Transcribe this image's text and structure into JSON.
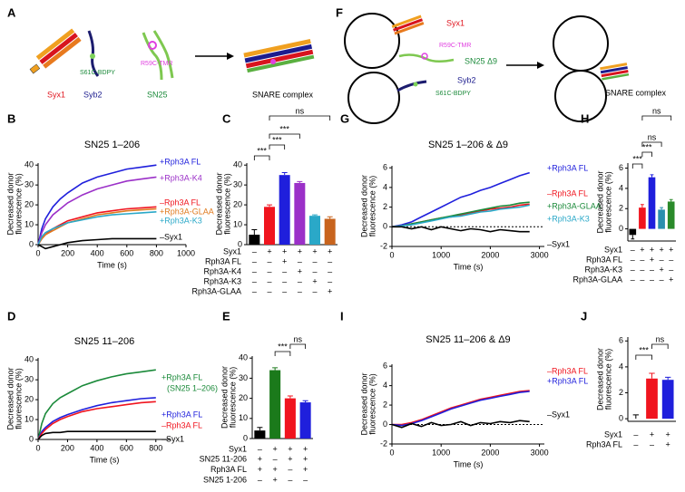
{
  "diagrams": [
    {
      "panel": "A",
      "texts": [
        "Syx1",
        "Syb2",
        "SN25",
        "S61C-BDPY",
        "R59C-TMR",
        "SNARE complex"
      ]
    },
    {
      "panel": "F",
      "texts": [
        "Syx1",
        "R59C-TMR",
        "SN25 Δ9",
        "Syb2",
        "S61C-BDPY",
        "SNARE complex"
      ]
    }
  ],
  "chart_data": [
    {
      "type": "line",
      "panel": "B",
      "title": "SN25 1–206",
      "xlabel": "Time (s)",
      "ylabel": [
        "Decreased donor",
        "fluorescence (%)"
      ],
      "xlim": [
        0,
        1000
      ],
      "xticks": [
        0,
        200,
        400,
        600,
        800,
        1000
      ],
      "ylim": [
        0,
        41
      ],
      "yticks": [
        0,
        10,
        20,
        30,
        40
      ],
      "x": [
        0,
        25,
        50,
        100,
        150,
        200,
        300,
        400,
        500,
        600,
        700,
        800
      ],
      "series": [
        {
          "name": "+Rph3A FL",
          "color": "#1f1fdc",
          "values": [
            0,
            8,
            13,
            19,
            23,
            26,
            31,
            34,
            36,
            38,
            39,
            40
          ]
        },
        {
          "name": "+Rph3A-K4",
          "color": "#9b30c8",
          "values": [
            0,
            6,
            10,
            15,
            18,
            21,
            25,
            28,
            30,
            32,
            33,
            34
          ]
        },
        {
          "name": "–Rph3A FL",
          "color": "#f0141e",
          "values": [
            0,
            3,
            5,
            8,
            10,
            12,
            14,
            16,
            17,
            18,
            18.5,
            19
          ]
        },
        {
          "name": "+Rph3A-GLAA",
          "color": "#e07a1e",
          "values": [
            0,
            3,
            5,
            7,
            9,
            11,
            13,
            15,
            16,
            17,
            17.5,
            18
          ]
        },
        {
          "name": "+Rph3A-K3",
          "color": "#2aa8c8",
          "values": [
            0,
            4,
            6,
            8,
            9.5,
            11,
            12.5,
            14,
            15,
            15.5,
            16,
            16.5
          ]
        },
        {
          "name": "–Syx1",
          "color": "#000000",
          "values": [
            0,
            -1,
            -2,
            -1,
            0,
            1,
            2,
            2.5,
            3,
            3,
            3,
            3
          ]
        }
      ]
    },
    {
      "type": "bar",
      "panel": "C",
      "ylabel": [
        "Decreased donor",
        "fluorescence (%)"
      ],
      "ylim": [
        0,
        41
      ],
      "yticks": [
        0,
        10,
        20,
        30,
        40
      ],
      "values": [
        5,
        19,
        35,
        31,
        14.5,
        13
      ],
      "errors": [
        2.5,
        1,
        1.2,
        0.7,
        0.5,
        1
      ],
      "colors": [
        "#000000",
        "#f0141e",
        "#1f1fdc",
        "#9b30c8",
        "#2aa8c8",
        "#c8641e"
      ],
      "conditions": [
        {
          "label": "Syx1",
          "signs": [
            "–",
            "+",
            "+",
            "+",
            "+",
            "+"
          ]
        },
        {
          "label": "Rph3A FL",
          "signs": [
            "–",
            "–",
            "+",
            "–",
            "–",
            "–"
          ]
        },
        {
          "label": "Rph3A-K4",
          "signs": [
            "–",
            "–",
            "–",
            "+",
            "–",
            "–"
          ]
        },
        {
          "label": "Rph3A-K3",
          "signs": [
            "–",
            "–",
            "–",
            "–",
            "+",
            "–"
          ]
        },
        {
          "label": "Rph3A-GLAA",
          "signs": [
            "–",
            "–",
            "–",
            "–",
            "–",
            "+"
          ]
        }
      ],
      "annotations": [
        "***",
        "***",
        "***",
        "ns"
      ]
    },
    {
      "type": "line",
      "panel": "D",
      "title": "SN25 11–206",
      "xlabel": "Time (s)",
      "ylabel": [
        "Decreased donor",
        "fluorescence (%)"
      ],
      "xlim": [
        0,
        900
      ],
      "xticks": [
        0,
        200,
        400,
        600,
        800
      ],
      "ylim": [
        0,
        41
      ],
      "yticks": [
        0,
        10,
        20,
        30,
        40
      ],
      "x": [
        0,
        25,
        50,
        100,
        150,
        200,
        300,
        400,
        500,
        600,
        700,
        800
      ],
      "series": [
        {
          "name": "+Rph3A FL",
          "note": "(SN25 1–206)",
          "color": "#1b8a3a",
          "values": [
            0,
            8,
            13,
            18,
            21,
            23,
            27,
            29.5,
            31.5,
            33,
            34,
            35
          ]
        },
        {
          "name": "+Rph3A FL",
          "color": "#1f1fdc",
          "values": [
            0,
            4,
            6,
            9,
            11,
            12.5,
            15,
            17,
            18.5,
            19.5,
            20.5,
            21
          ]
        },
        {
          "name": "–Rph3A FL",
          "color": "#f0141e",
          "values": [
            0,
            3,
            5,
            8,
            10,
            11.5,
            14,
            15.5,
            16.5,
            17.5,
            18.5,
            19
          ]
        },
        {
          "name": "–Syx1",
          "color": "#000000",
          "values": [
            0,
            2,
            3,
            3.5,
            3.5,
            4,
            4,
            4,
            4,
            4,
            4,
            4
          ]
        }
      ]
    },
    {
      "type": "bar",
      "panel": "E",
      "ylabel": [
        "Decreased donor",
        "fluorescence (%)"
      ],
      "ylim": [
        0,
        41
      ],
      "yticks": [
        0,
        10,
        20,
        30,
        40
      ],
      "values": [
        4,
        34,
        20,
        18
      ],
      "errors": [
        1.5,
        1.2,
        1.2,
        0.8
      ],
      "colors": [
        "#000000",
        "#1b7a1b",
        "#f0141e",
        "#1f1fdc"
      ],
      "conditions": [
        {
          "label": "Syx1",
          "signs": [
            "–",
            "+",
            "+",
            "+"
          ]
        },
        {
          "label": "SN25 11-206",
          "signs": [
            "+",
            "–",
            "+",
            "+"
          ]
        },
        {
          "label": "Rph3A FL",
          "signs": [
            "+",
            "+",
            "–",
            "+"
          ]
        },
        {
          "label": "SN25 1-206",
          "signs": [
            "–",
            "+",
            "–",
            "–"
          ]
        }
      ],
      "annotations": [
        "***",
        "ns"
      ]
    },
    {
      "type": "line",
      "panel": "G",
      "title": "SN25 1–206 & Δ9",
      "xlabel": "Time (s)",
      "ylabel": [
        "Decreased donor",
        "fluorescence (%)"
      ],
      "xlim": [
        0,
        3100
      ],
      "xticks": [
        0,
        1000,
        2000,
        3000
      ],
      "ylim": [
        -2,
        6.2
      ],
      "yticks": [
        -2,
        0,
        2,
        4,
        6
      ],
      "x": [
        0,
        200,
        400,
        600,
        800,
        1000,
        1200,
        1400,
        1600,
        1800,
        2000,
        2200,
        2400,
        2600,
        2800
      ],
      "series": [
        {
          "name": "+Rph3A FL",
          "color": "#1f1fdc",
          "values": [
            0,
            0.2,
            0.5,
            1,
            1.5,
            2,
            2.5,
            3,
            3.3,
            3.7,
            4,
            4.4,
            4.8,
            5.2,
            5.5
          ]
        },
        {
          "name": "–Rph3A FL",
          "color": "#f0141e",
          "values": [
            0,
            0.1,
            0.3,
            0.5,
            0.7,
            0.9,
            1,
            1.2,
            1.4,
            1.6,
            1.8,
            1.9,
            2,
            2.2,
            2.3
          ]
        },
        {
          "name": "+Rph3A-GLAA",
          "color": "#1b8a3a",
          "values": [
            0,
            0.1,
            0.3,
            0.5,
            0.7,
            0.9,
            1.1,
            1.3,
            1.5,
            1.7,
            1.9,
            2.1,
            2.2,
            2.4,
            2.5
          ]
        },
        {
          "name": "+Rph3A-K3",
          "color": "#2aa8c8",
          "values": [
            0,
            0.1,
            0.2,
            0.4,
            0.6,
            0.8,
            1,
            1.1,
            1.3,
            1.5,
            1.6,
            1.8,
            1.9,
            2,
            2.2
          ]
        },
        {
          "name": "–Syx1",
          "color": "#000000",
          "values": [
            0,
            0,
            -0.2,
            0,
            -0.3,
            0,
            -0.2,
            -0.4,
            -0.2,
            -0.3,
            -0.5,
            -0.3,
            -0.4,
            -0.5,
            -0.5
          ]
        }
      ]
    },
    {
      "type": "bar",
      "panel": "H",
      "ylabel": [
        "Decreased donor",
        "fluorescence (%)"
      ],
      "ylim": [
        -1.2,
        6.5
      ],
      "yticks": [
        0,
        2,
        4,
        6
      ],
      "values": [
        -0.6,
        2.1,
        5.1,
        1.9,
        2.7
      ],
      "errors": [
        0.4,
        0.3,
        0.25,
        0.2,
        0.2
      ],
      "colors": [
        "#000000",
        "#f0141e",
        "#1f1fdc",
        "#2a8fae",
        "#2a8a2a"
      ],
      "conditions": [
        {
          "label": "Syx1",
          "signs": [
            "–",
            "+",
            "+",
            "+",
            "+"
          ]
        },
        {
          "label": "Rph3A FL",
          "signs": [
            "–",
            "–",
            "+",
            "–",
            "–"
          ]
        },
        {
          "label": "Rph3A-K3",
          "signs": [
            "–",
            "–",
            "–",
            "+",
            "–"
          ]
        },
        {
          "label": "Rph3A-GLAA",
          "signs": [
            "–",
            "–",
            "–",
            "–",
            "+"
          ]
        }
      ],
      "annotations": [
        "***",
        "***",
        "ns",
        "ns"
      ]
    },
    {
      "type": "line",
      "panel": "I",
      "title": "SN25 11–206 & Δ9",
      "xlabel": "Time (s)",
      "ylabel": [
        "Decreased donor",
        "fluorescence (%)"
      ],
      "xlim": [
        0,
        3100
      ],
      "xticks": [
        0,
        1000,
        2000,
        3000
      ],
      "ylim": [
        -2,
        6.2
      ],
      "yticks": [
        -2,
        0,
        2,
        4,
        6
      ],
      "x": [
        0,
        200,
        400,
        600,
        800,
        1000,
        1200,
        1400,
        1600,
        1800,
        2000,
        2200,
        2400,
        2600,
        2800
      ],
      "series": [
        {
          "name": "–Rph3A FL",
          "color": "#f0141e",
          "values": [
            0,
            0,
            0.2,
            0.5,
            0.9,
            1.3,
            1.7,
            2,
            2.3,
            2.6,
            2.8,
            3,
            3.2,
            3.4,
            3.5
          ]
        },
        {
          "name": "+Rph3A FL",
          "color": "#1f1fdc",
          "values": [
            0,
            -0.1,
            0.1,
            0.4,
            0.8,
            1.2,
            1.6,
            1.9,
            2.2,
            2.5,
            2.7,
            2.9,
            3.1,
            3.3,
            3.4
          ]
        },
        {
          "name": "–Syx1",
          "color": "#000000",
          "values": [
            0,
            -0.3,
            0.1,
            -0.2,
            0.2,
            -0.1,
            0,
            0.3,
            -0.1,
            0.2,
            0.1,
            0.3,
            0.2,
            0.4,
            0.3
          ]
        }
      ]
    },
    {
      "type": "bar",
      "panel": "J",
      "ylabel": [
        "Decreased donor",
        "fluorescence (%)"
      ],
      "ylim": [
        -0.2,
        6.3
      ],
      "yticks": [
        0,
        2,
        4,
        6
      ],
      "values": [
        0,
        3.1,
        3
      ],
      "errors": [
        0.3,
        0.4,
        0.2
      ],
      "colors": [
        "#000000",
        "#f0141e",
        "#1f1fdc"
      ],
      "conditions": [
        {
          "label": "Syx1",
          "signs": [
            "–",
            "+",
            "+"
          ]
        },
        {
          "label": "Rph3A FL",
          "signs": [
            "–",
            "–",
            "+"
          ]
        }
      ],
      "annotations": [
        "***",
        "ns"
      ]
    }
  ]
}
